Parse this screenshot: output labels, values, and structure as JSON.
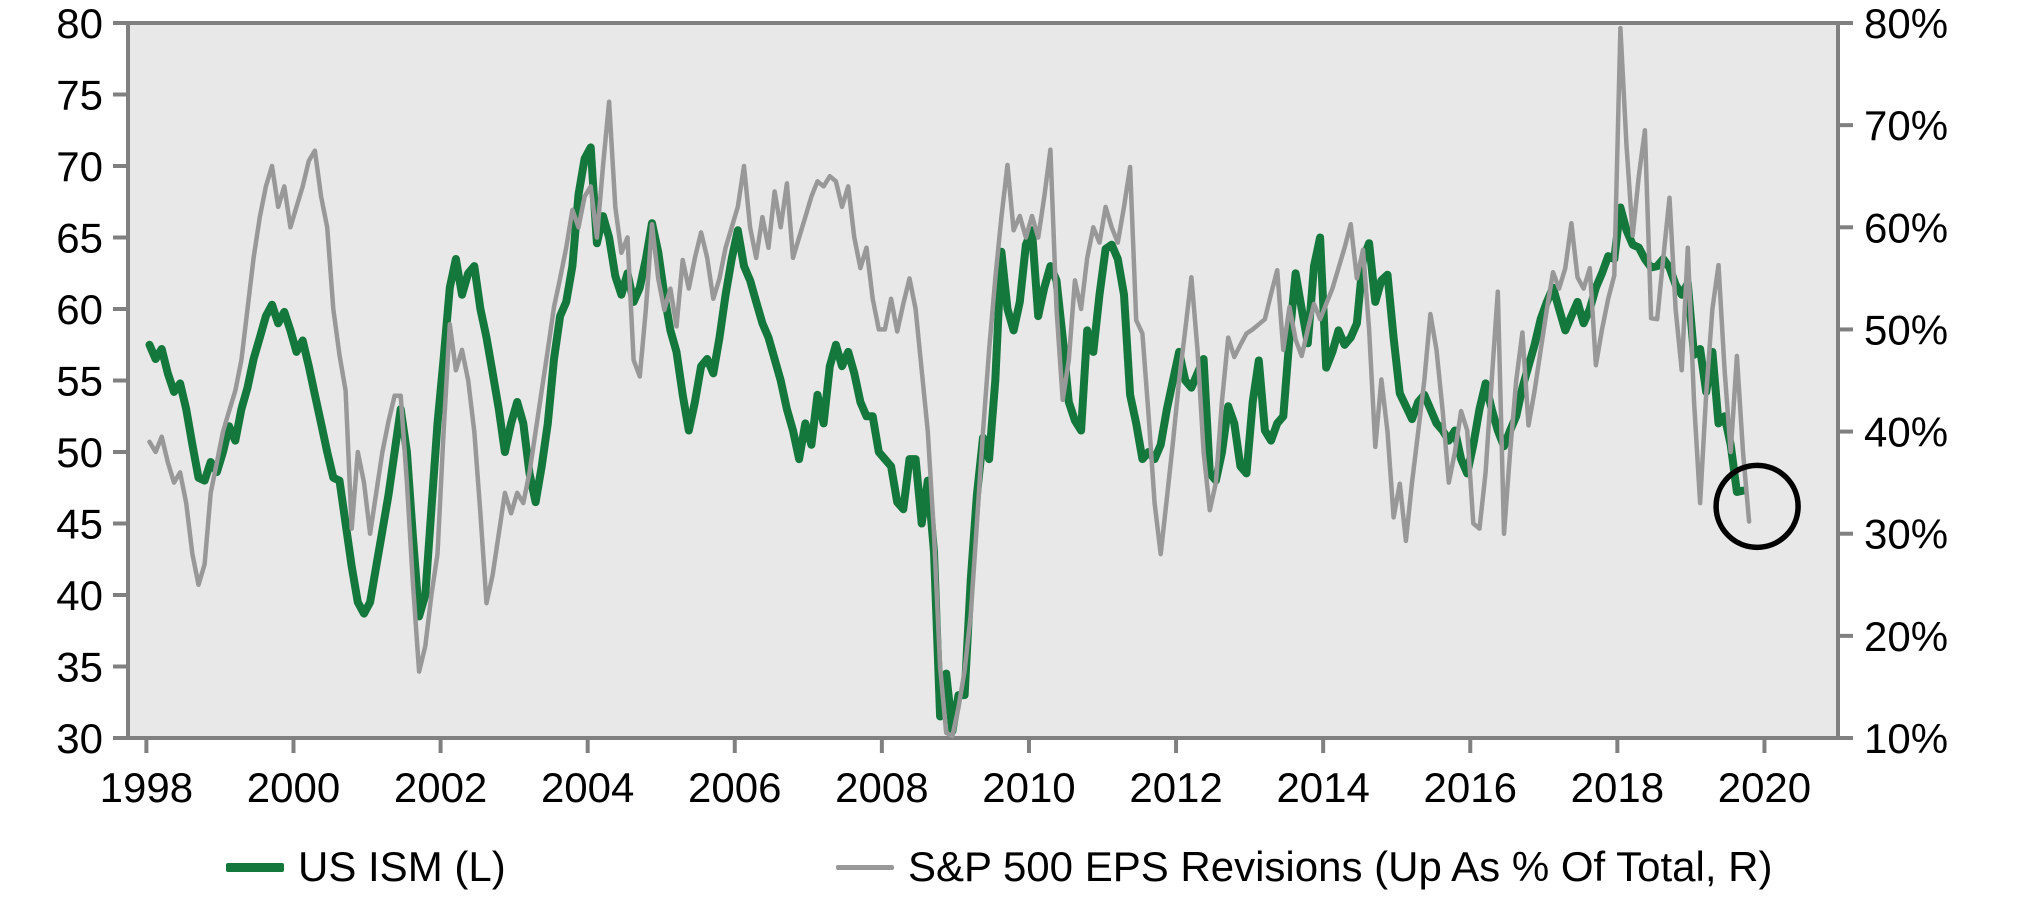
{
  "chart_data": {
    "type": "line",
    "title": "",
    "plot_background": "#e8e8e8",
    "axis_color": "#808080",
    "x_axis": {
      "tick_years": [
        1998,
        2000,
        2002,
        2004,
        2006,
        2008,
        2010,
        2012,
        2014,
        2016,
        2018,
        2020
      ],
      "min_year": 1997.75,
      "max_year": 2021.0
    },
    "left_axis": {
      "min": 30,
      "max": 80,
      "ticks": [
        80,
        75,
        70,
        65,
        60,
        55,
        50,
        45,
        40,
        35,
        30
      ]
    },
    "right_axis": {
      "min": 10,
      "max": 80,
      "ticks": [
        "80%",
        "70%",
        "60%",
        "50%",
        "40%",
        "30%",
        "20%",
        "10%"
      ],
      "tick_values": [
        80,
        70,
        60,
        50,
        40,
        30,
        20,
        10
      ]
    },
    "series": [
      {
        "name": "US ISM (L)",
        "axis": "left",
        "color": "#14783c",
        "line_width": 8,
        "start_year": 1998,
        "start_month": 1,
        "frequency": "monthly",
        "values": [
          57.5,
          56.5,
          57.2,
          55.5,
          54.2,
          54.8,
          53.0,
          50.5,
          48.2,
          48.0,
          49.3,
          48.6,
          50.0,
          51.8,
          50.8,
          53.0,
          54.5,
          56.5,
          58.0,
          59.5,
          60.3,
          59.0,
          59.8,
          58.5,
          57.0,
          57.8,
          56.0,
          54.0,
          52.0,
          50.0,
          48.2,
          48.0,
          45.0,
          42.0,
          39.5,
          38.7,
          39.5,
          42.0,
          44.5,
          47.0,
          50.0,
          53.0,
          50.0,
          44.0,
          38.5,
          40.0,
          46.0,
          52.0,
          56.5,
          61.5,
          63.5,
          61.0,
          62.5,
          63.0,
          60.0,
          58.0,
          55.5,
          53.0,
          50.0,
          52.0,
          53.5,
          52.0,
          48.5,
          46.5,
          49.0,
          52.0,
          56.5,
          59.5,
          60.5,
          63.0,
          68.0,
          70.5,
          71.3,
          64.6,
          66.5,
          65.0,
          62.3,
          61.0,
          62.5,
          60.5,
          61.5,
          63.5,
          66.0,
          64.0,
          61.0,
          58.5,
          57.0,
          54.0,
          51.5,
          53.5,
          56.0,
          56.5,
          55.5,
          58.0,
          61.0,
          63.5,
          65.5,
          63.0,
          62.0,
          60.5,
          59.0,
          58.0,
          56.5,
          55.0,
          53.0,
          51.5,
          49.5,
          52.0,
          50.5,
          54.0,
          52.0,
          56.0,
          57.5,
          56.0,
          57.0,
          55.5,
          53.5,
          52.5,
          52.5,
          50.0,
          49.5,
          49.0,
          46.5,
          46.0,
          49.5,
          49.5,
          45.0,
          48.0,
          43.0,
          31.5,
          34.5,
          30.5,
          33.0,
          33.0,
          41.0,
          47.0,
          51.0,
          49.5,
          55.0,
          64.0,
          60.0,
          58.5,
          60.5,
          64.5,
          65.5,
          59.5,
          61.5,
          63.0,
          62.0,
          58.0,
          53.5,
          52.2,
          51.5,
          58.5,
          57.0,
          61.0,
          64.2,
          64.5,
          63.5,
          61.0,
          54.0,
          52.0,
          49.5,
          50.0,
          49.5,
          50.5,
          53.0,
          55.0,
          57.0,
          55.0,
          54.5,
          55.5,
          56.5,
          48.5,
          48.0,
          50.0,
          53.2,
          52.0,
          49.0,
          48.5,
          53.5,
          56.4,
          51.5,
          50.8,
          52.0,
          52.5,
          58.0,
          62.5,
          60.0,
          57.6,
          63.0,
          65.0,
          55.9,
          57.0,
          58.5,
          57.5,
          58.0,
          59.0,
          63.5,
          64.6,
          60.5,
          62.0,
          62.4,
          58.0,
          54.1,
          53.2,
          52.3,
          53.5,
          54.0,
          53.0,
          52.0,
          51.5,
          50.8,
          51.5,
          49.5,
          48.5,
          50.5,
          53.0,
          54.8,
          53.0,
          51.5,
          50.4,
          51.5,
          52.5,
          54.5,
          56.0,
          57.5,
          59.3,
          60.5,
          61.5,
          60.0,
          58.5,
          59.5,
          60.5,
          59.0,
          60.0,
          61.5,
          62.5,
          63.7,
          63.5,
          67.1,
          65.5,
          64.5,
          64.3,
          63.5,
          62.9,
          63.0,
          63.5,
          62.9,
          61.7,
          61.0,
          61.8,
          56.8,
          57.2,
          54.2,
          57.0,
          52.0,
          52.5,
          50.5,
          47.2,
          47.3
        ]
      },
      {
        "name": "S&P 500 EPS Revisions (Up As % Of Total, R)",
        "axis": "right",
        "color": "#989898",
        "line_width": 4.5,
        "start_year": 1998,
        "start_month": 1,
        "frequency": "monthly",
        "values": [
          39,
          38,
          39.5,
          37,
          35,
          36,
          33,
          28,
          25,
          27,
          34,
          37,
          40,
          42,
          44,
          47,
          52,
          57,
          61,
          64,
          66,
          62,
          64,
          60,
          62,
          64,
          66.5,
          67.5,
          63,
          60,
          52,
          47.5,
          44,
          30.5,
          38,
          35,
          30,
          34,
          38,
          41,
          43.5,
          43.5,
          35,
          25,
          16.5,
          19,
          24,
          28,
          40,
          50.5,
          46,
          48,
          45,
          40,
          32,
          23.2,
          26,
          30,
          34,
          32,
          34,
          33,
          36,
          40,
          44,
          48,
          52.2,
          55,
          58,
          61.7,
          60,
          63,
          64,
          59,
          66,
          72.3,
          62,
          57.5,
          59,
          47,
          45.4,
          52,
          60.3,
          55,
          51.9,
          54,
          50.3,
          56.8,
          54,
          57,
          59.5,
          57,
          53,
          55,
          58,
          60,
          62,
          66,
          60,
          57,
          61,
          58,
          63.5,
          60,
          64.3,
          57,
          59,
          61,
          63,
          64.5,
          64,
          65,
          64.5,
          62,
          64,
          59,
          56,
          58,
          53,
          50,
          50,
          53,
          49.8,
          52.5,
          55,
          52,
          46,
          40,
          30,
          17,
          10.5,
          10.2,
          13,
          16.6,
          22,
          31,
          40,
          48,
          55,
          61,
          66.1,
          59.7,
          61.1,
          59,
          61.1,
          59,
          63,
          67.6,
          52,
          43.1,
          47,
          54.8,
          52,
          57,
          60,
          58.5,
          62,
          60,
          58.5,
          62,
          65.9,
          50.9,
          49.6,
          41.7,
          33,
          28,
          33.5,
          39,
          45,
          50,
          55.1,
          48,
          38,
          32.3,
          35,
          43,
          49.2,
          47.3,
          48.5,
          49.6,
          50,
          50.5,
          51,
          53.5,
          55.8,
          48,
          52.2,
          49,
          47.4,
          50,
          52.5,
          51,
          52.5,
          54,
          56,
          58,
          60.3,
          55,
          57.8,
          50,
          38.5,
          45.1,
          40,
          31.6,
          34.9,
          29.3,
          35,
          40,
          45,
          51.5,
          48,
          42,
          35,
          38,
          42,
          40.1,
          31,
          30.5,
          36,
          45,
          53.7,
          30,
          38,
          45,
          49.7,
          40.6,
          44,
          48,
          52,
          55.6,
          54,
          56,
          60.4,
          55.1,
          54,
          56,
          46.5,
          50,
          53,
          55.3,
          79.5,
          68,
          59.2,
          65,
          69.5,
          51.1,
          51,
          57,
          62.9,
          52,
          46,
          58,
          43,
          33,
          43.7,
          52,
          56.3,
          46,
          38,
          47.4,
          38,
          31.2
        ]
      }
    ],
    "annotation": {
      "shape": "circle",
      "center_year": 2019.9,
      "center_value_left": 46.2,
      "radius_px": 41,
      "stroke_color": "#000000",
      "stroke_width": 5.5
    },
    "legend_position": "bottom"
  },
  "legend": {
    "items": [
      {
        "label": "US ISM (L)",
        "color": "#14783c"
      },
      {
        "label": "S&P 500 EPS Revisions (Up As % Of Total, R)",
        "color": "#989898"
      }
    ]
  }
}
